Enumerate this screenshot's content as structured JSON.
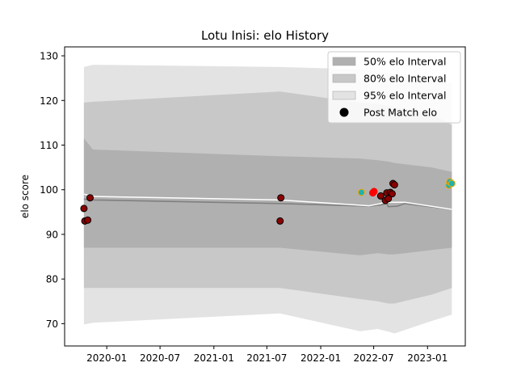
{
  "chart_data": {
    "type": "line",
    "title": "Lotu Inisi: elo History",
    "xlabel": "",
    "ylabel": "elo score",
    "x_ticks": [
      "2020-01",
      "2020-07",
      "2021-01",
      "2021-07",
      "2022-01",
      "2022-07",
      "2023-01"
    ],
    "y_ticks": [
      70,
      80,
      90,
      100,
      110,
      120,
      130
    ],
    "ylim": [
      65,
      132
    ],
    "xlim": [
      "2019-08-10",
      "2023-05-10"
    ],
    "grid": false,
    "legend_position": "top-right",
    "legend": [
      {
        "label": "50% elo Interval",
        "kind": "band",
        "color": "#b0b0b0"
      },
      {
        "label": "80% elo Interval",
        "kind": "band",
        "color": "#c8c8c8"
      },
      {
        "label": "95% elo Interval",
        "kind": "band",
        "color": "#e3e3e3"
      },
      {
        "label": "Post Match elo",
        "kind": "point",
        "color": "#000000"
      }
    ],
    "bands": [
      {
        "name": "95% elo Interval",
        "color": "#e3e3e3",
        "x": [
          "2019-10-15",
          "2019-11-15",
          "2021-08-15",
          "2022-05-15",
          "2022-07-15",
          "2022-08-20",
          "2022-09-10",
          "2023-01-15",
          "2023-03-25"
        ],
        "upper": [
          127.5,
          128,
          127.5,
          127,
          126.5,
          126,
          125.8,
          124.5,
          123.8
        ],
        "lower": [
          69.8,
          70.2,
          72.3,
          68.3,
          68.8,
          68.2,
          67.8,
          70.6,
          72
        ]
      },
      {
        "name": "80% elo Interval",
        "color": "#c8c8c8",
        "x": [
          "2019-10-15",
          "2019-11-15",
          "2021-08-15",
          "2022-05-15",
          "2022-07-15",
          "2022-08-20",
          "2022-09-10",
          "2023-01-15",
          "2023-03-25"
        ],
        "upper": [
          119.5,
          119.7,
          122,
          119.5,
          119.2,
          118.8,
          118.5,
          117,
          114.5
        ],
        "lower": [
          78,
          78,
          78,
          75.5,
          75,
          74.5,
          74.5,
          76.5,
          78
        ]
      },
      {
        "name": "50% elo Interval",
        "color": "#b0b0b0",
        "x": [
          "2019-10-15",
          "2019-11-15",
          "2021-08-15",
          "2022-05-15",
          "2022-07-15",
          "2022-08-20",
          "2022-09-10",
          "2023-01-15",
          "2023-03-25"
        ],
        "upper": [
          111.5,
          109,
          107.5,
          107,
          106.6,
          106.3,
          106,
          105,
          104
        ],
        "lower": [
          87,
          87,
          87,
          85.3,
          85.8,
          85.5,
          85.5,
          86.5,
          87
        ]
      }
    ],
    "series": [
      {
        "name": "",
        "color": "#808080",
        "x": [
          "2019-10-15",
          "2019-11-20",
          "2021-08-15",
          "2022-06-15",
          "2022-07-25",
          "2022-08-15",
          "2022-08-20",
          "2022-09-20",
          "2022-10-15",
          "2023-03-25"
        ],
        "values": [
          97.9,
          97.7,
          96.9,
          96.3,
          96.6,
          96.9,
          96.2,
          96.3,
          96.9,
          95.6
        ]
      },
      {
        "name": "",
        "color": "#ffffff",
        "x": [
          "2019-10-15",
          "2019-11-20",
          "2021-08-15",
          "2022-06-15",
          "2022-07-25",
          "2022-08-15",
          "2022-08-20",
          "2022-09-20",
          "2022-10-15",
          "2023-03-25"
        ],
        "values": [
          99,
          98.5,
          97.7,
          96.4,
          96.9,
          97.6,
          97.2,
          97.2,
          97.2,
          95.6
        ]
      }
    ],
    "points": [
      {
        "x": "2019-10-15",
        "y": 95.8,
        "color": "#8b0000",
        "edge": "#000000"
      },
      {
        "x": "2019-10-18",
        "y": 93,
        "color": "#8b0000",
        "edge": "#000000"
      },
      {
        "x": "2019-10-28",
        "y": 93.2,
        "color": "#8b0000",
        "edge": "#000000"
      },
      {
        "x": "2019-11-05",
        "y": 98.2,
        "color": "#8b0000",
        "edge": "#000000"
      },
      {
        "x": "2021-08-15",
        "y": 93,
        "color": "#8b0000",
        "edge": "#000000"
      },
      {
        "x": "2021-08-18",
        "y": 98.2,
        "color": "#8b0000",
        "edge": "#000000"
      },
      {
        "x": "2022-05-20",
        "y": 99.4,
        "color": "#20b2aa",
        "edge": "#ffa500"
      },
      {
        "x": "2022-06-28",
        "y": 99.3,
        "color": "#ff0000",
        "edge": "#ff0000"
      },
      {
        "x": "2022-07-02",
        "y": 99.6,
        "color": "#ff0000",
        "edge": "#ff0000"
      },
      {
        "x": "2022-07-25",
        "y": 98.6,
        "color": "#8b0000",
        "edge": "#000000"
      },
      {
        "x": "2022-08-10",
        "y": 97.6,
        "color": "#8b0000",
        "edge": "#000000"
      },
      {
        "x": "2022-08-15",
        "y": 99.3,
        "color": "#8b0000",
        "edge": "#000000"
      },
      {
        "x": "2022-08-20",
        "y": 98,
        "color": "#8b0000",
        "edge": "#000000"
      },
      {
        "x": "2022-08-27",
        "y": 99.4,
        "color": "#8b0000",
        "edge": "#000000"
      },
      {
        "x": "2022-09-02",
        "y": 99.1,
        "color": "#8b0000",
        "edge": "#000000"
      },
      {
        "x": "2022-09-05",
        "y": 101.4,
        "color": "#8b0000",
        "edge": "#000000"
      },
      {
        "x": "2022-09-10",
        "y": 101.1,
        "color": "#8b0000",
        "edge": "#000000"
      },
      {
        "x": "2023-03-15",
        "y": 101,
        "color": "#20b2aa",
        "edge": "#ffa500"
      },
      {
        "x": "2023-03-18",
        "y": 101.8,
        "color": "#20b2aa",
        "edge": "#ffa500"
      },
      {
        "x": "2023-03-25",
        "y": 101.4,
        "color": "#20b2aa",
        "edge": "#ffa500"
      }
    ]
  }
}
